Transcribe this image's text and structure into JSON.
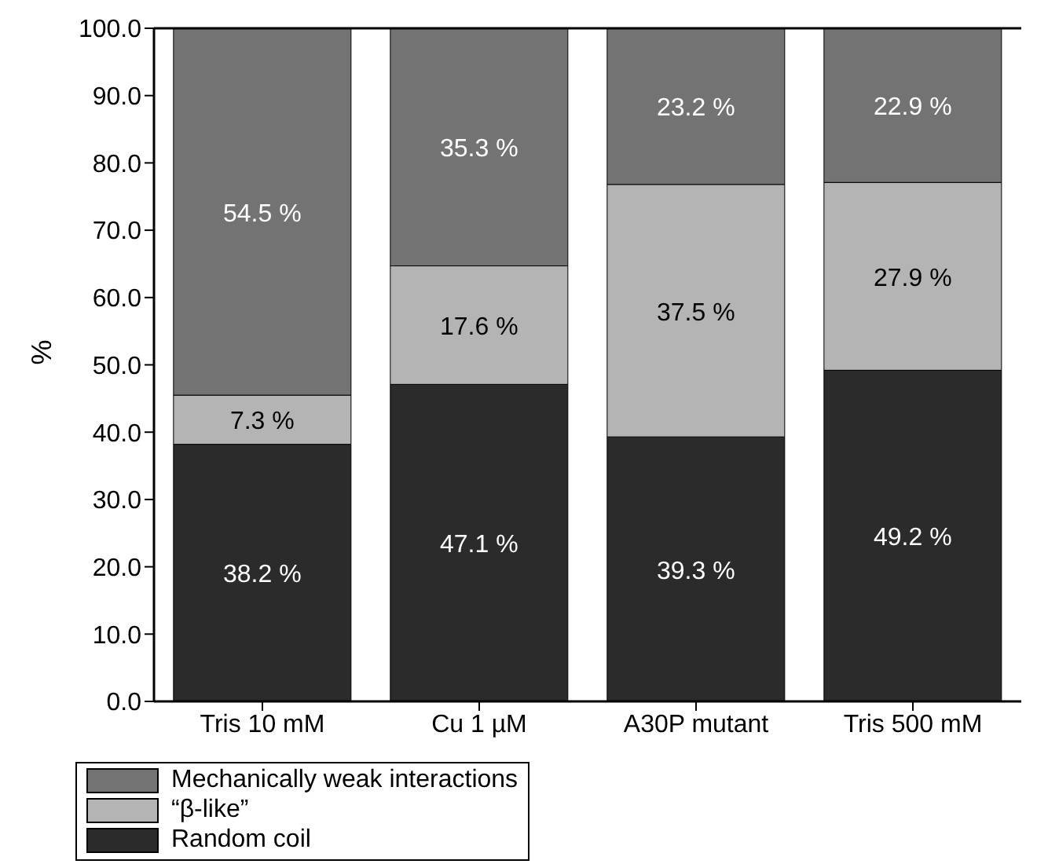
{
  "chart_data": {
    "type": "bar",
    "stacked": true,
    "ylabel": "%",
    "categories": [
      "Tris 10 mM",
      "Cu 1 µM",
      "A30P mutant",
      "Tris 500 mM"
    ],
    "series": [
      {
        "name": "Random coil",
        "color": "#2b2b2b",
        "values": [
          38.2,
          47.1,
          39.3,
          49.2
        ],
        "value_labels": [
          "38.2 %",
          "47.1 %",
          "39.3 %",
          "49.2 %"
        ]
      },
      {
        "name": "“β-like”",
        "color": "#b4b4b4",
        "values": [
          7.3,
          17.6,
          37.5,
          27.9
        ],
        "value_labels": [
          "7.3 %",
          "17.6 %",
          "37.5 %",
          "27.9 %"
        ]
      },
      {
        "name": "Mechanically weak interactions",
        "color": "#737373",
        "values": [
          54.5,
          35.3,
          23.2,
          22.9
        ],
        "value_labels": [
          "54.5 %",
          "35.3 %",
          "23.2 %",
          "22.9 %"
        ]
      }
    ],
    "ylim": [
      0,
      100
    ],
    "yticks": [
      {
        "value": 0,
        "label": "0.0"
      },
      {
        "value": 10,
        "label": "10.0"
      },
      {
        "value": 20,
        "label": "20.0"
      },
      {
        "value": 30,
        "label": "30.0"
      },
      {
        "value": 40,
        "label": "40.0"
      },
      {
        "value": 50,
        "label": "50.0"
      },
      {
        "value": 60,
        "label": "60.0"
      },
      {
        "value": 70,
        "label": "70.0"
      },
      {
        "value": 80,
        "label": "80.0"
      },
      {
        "value": 90,
        "label": "90.0"
      },
      {
        "value": 100,
        "label": "100.0"
      }
    ],
    "grid": false,
    "legend": "bottom"
  }
}
